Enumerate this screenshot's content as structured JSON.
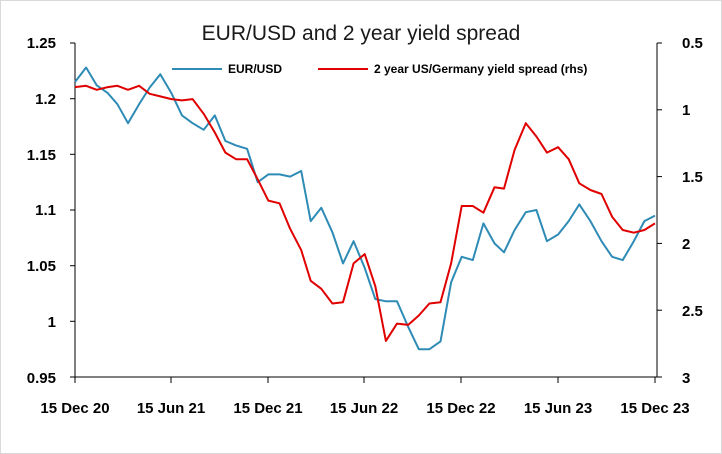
{
  "chart_data": {
    "type": "line",
    "title": "EUR/USD and 2 year yield spread",
    "x_tick_labels": [
      "15 Dec 20",
      "15 Jun 21",
      "15 Dec 21",
      "15 Jun 22",
      "15 Dec 22",
      "15 Jun 23",
      "15 Dec 23"
    ],
    "x_range": [
      "2020-12-15",
      "2023-12-15"
    ],
    "left_axis": {
      "ticks": [
        "0.95",
        "1",
        "1.05",
        "1.1",
        "1.15",
        "1.2",
        "1.25"
      ],
      "range": [
        0.95,
        1.25
      ]
    },
    "right_axis": {
      "ticks": [
        "0.5",
        "1",
        "1.5",
        "2",
        "2.5",
        "3"
      ],
      "range": [
        0.5,
        3
      ],
      "inverted": true
    },
    "legend_placement": "top-center",
    "grid": false,
    "series": [
      {
        "name": "EUR/USD",
        "axis": "left",
        "color": "#2e8bb5",
        "x": [
          "2020-12-15",
          "2021-01-05",
          "2021-01-25",
          "2021-02-15",
          "2021-03-05",
          "2021-03-25",
          "2021-04-15",
          "2021-05-05",
          "2021-05-25",
          "2021-06-15",
          "2021-07-05",
          "2021-07-25",
          "2021-08-15",
          "2021-09-05",
          "2021-09-25",
          "2021-10-15",
          "2021-11-05",
          "2021-11-25",
          "2021-12-15",
          "2022-01-05",
          "2022-01-25",
          "2022-02-15",
          "2022-03-05",
          "2022-03-25",
          "2022-04-15",
          "2022-05-05",
          "2022-05-25",
          "2022-06-15",
          "2022-07-05",
          "2022-07-25",
          "2022-08-15",
          "2022-09-05",
          "2022-09-25",
          "2022-10-15",
          "2022-11-05",
          "2022-11-25",
          "2022-12-15",
          "2023-01-05",
          "2023-01-25",
          "2023-02-15",
          "2023-03-05",
          "2023-03-25",
          "2023-04-15",
          "2023-05-05",
          "2023-05-25",
          "2023-06-15",
          "2023-07-05",
          "2023-07-25",
          "2023-08-15",
          "2023-09-05",
          "2023-09-25",
          "2023-10-15",
          "2023-11-05",
          "2023-11-25",
          "2023-12-15"
        ],
        "values": [
          1.215,
          1.228,
          1.212,
          1.205,
          1.195,
          1.178,
          1.195,
          1.21,
          1.222,
          1.205,
          1.185,
          1.178,
          1.172,
          1.185,
          1.162,
          1.158,
          1.155,
          1.125,
          1.132,
          1.132,
          1.13,
          1.135,
          1.09,
          1.102,
          1.08,
          1.052,
          1.072,
          1.048,
          1.02,
          1.018,
          1.018,
          0.995,
          0.975,
          0.975,
          0.982,
          1.035,
          1.058,
          1.055,
          1.088,
          1.07,
          1.062,
          1.082,
          1.098,
          1.1,
          1.072,
          1.078,
          1.09,
          1.105,
          1.09,
          1.072,
          1.058,
          1.055,
          1.072,
          1.09,
          1.095
        ]
      },
      {
        "name": "2 year US/Germany yield spread (rhs)",
        "axis": "right",
        "color": "#e00000",
        "x": [
          "2020-12-15",
          "2021-01-05",
          "2021-01-25",
          "2021-02-15",
          "2021-03-05",
          "2021-03-25",
          "2021-04-15",
          "2021-05-05",
          "2021-05-25",
          "2021-06-15",
          "2021-07-05",
          "2021-07-25",
          "2021-08-15",
          "2021-09-05",
          "2021-09-25",
          "2021-10-15",
          "2021-11-05",
          "2021-11-25",
          "2021-12-15",
          "2022-01-05",
          "2022-01-25",
          "2022-02-15",
          "2022-03-05",
          "2022-03-25",
          "2022-04-15",
          "2022-05-05",
          "2022-05-25",
          "2022-06-15",
          "2022-07-05",
          "2022-07-25",
          "2022-08-15",
          "2022-09-05",
          "2022-09-25",
          "2022-10-15",
          "2022-11-05",
          "2022-11-25",
          "2022-12-15",
          "2023-01-05",
          "2023-01-25",
          "2023-02-15",
          "2023-03-05",
          "2023-03-25",
          "2023-04-15",
          "2023-05-05",
          "2023-05-25",
          "2023-06-15",
          "2023-07-05",
          "2023-07-25",
          "2023-08-15",
          "2023-09-05",
          "2023-09-25",
          "2023-10-15",
          "2023-11-05",
          "2023-11-25",
          "2023-12-15"
        ],
        "values": [
          0.83,
          0.82,
          0.85,
          0.83,
          0.82,
          0.85,
          0.82,
          0.88,
          0.9,
          0.92,
          0.93,
          0.92,
          1.03,
          1.17,
          1.32,
          1.37,
          1.37,
          1.52,
          1.68,
          1.7,
          1.89,
          2.05,
          2.28,
          2.34,
          2.45,
          2.44,
          2.15,
          2.08,
          2.32,
          2.73,
          2.6,
          2.61,
          2.54,
          2.45,
          2.44,
          2.15,
          1.72,
          1.72,
          1.77,
          1.58,
          1.59,
          1.3,
          1.1,
          1.2,
          1.32,
          1.28,
          1.37,
          1.55,
          1.6,
          1.63,
          1.8,
          1.9,
          1.92,
          1.9,
          1.85
        ]
      }
    ]
  }
}
